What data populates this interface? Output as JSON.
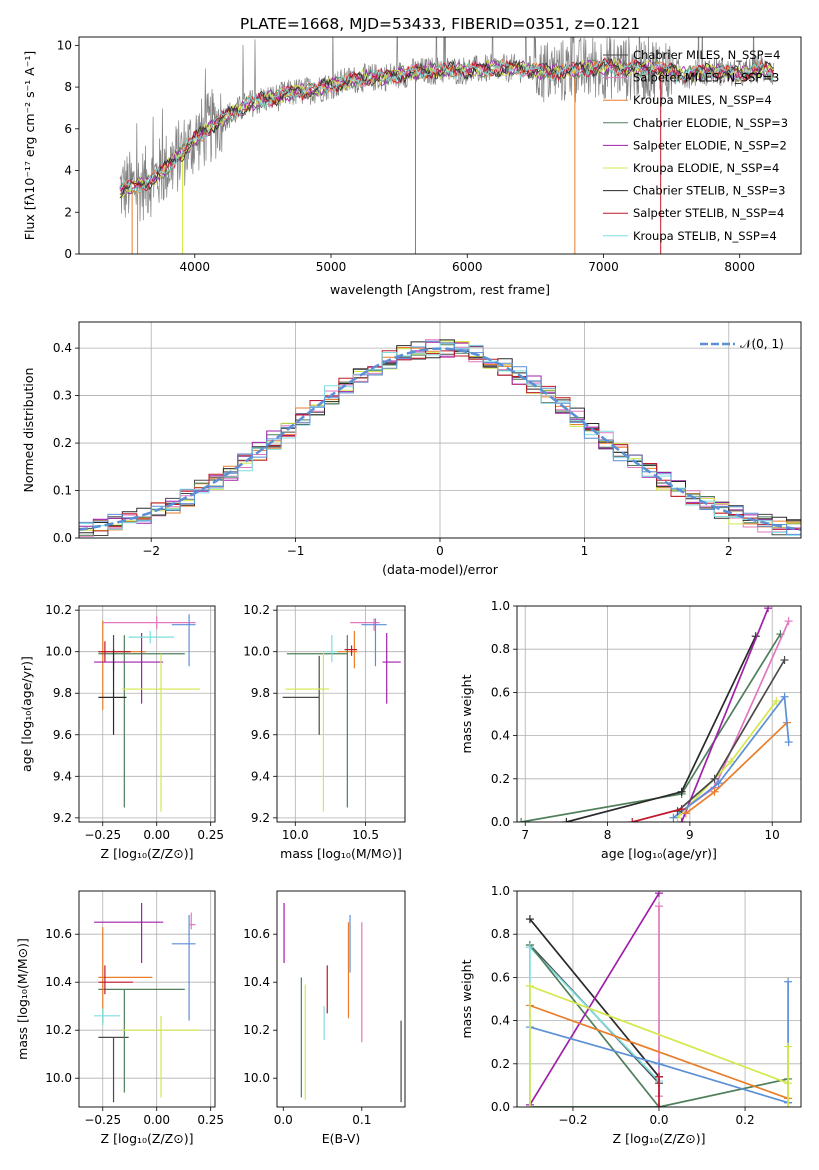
{
  "figure_title": "PLATE=1668, MJD=53433, FIBERID=0351, z=0.121",
  "colors": {
    "chabrier_miles": "#4a4a4a",
    "salpeter_miles": "#e377c2",
    "kroupa_miles": "#e87e2b",
    "chabrier_elodie": "#4f7f5a",
    "salpeter_elodie": "#a020a8",
    "kroupa_elodie": "#d4e84a",
    "chabrier_stelib": "#2a2a2a",
    "salpeter_stelib": "#c0182a",
    "kroupa_stelib": "#7fdde0",
    "data": "#808080",
    "gaussian": "#5b8fd6",
    "blue_model": "#5b8fd6"
  },
  "chart_data": [
    {
      "id": "spectrum",
      "type": "line",
      "title": "PLATE=1668, MJD=53433, FIBERID=0351, z=0.121",
      "xlabel": "wavelength [Angstrom, rest frame]",
      "ylabel": "Flux [fλ10⁻¹⁷ erg cm⁻² s⁻¹ A⁻¹]",
      "xlim": [
        3150,
        8450
      ],
      "ylim": [
        0,
        10.4
      ],
      "xticks": [
        4000,
        5000,
        6000,
        7000,
        8000
      ],
      "yticks": [
        0,
        2,
        4,
        6,
        8,
        10
      ],
      "grid": false,
      "legend_position": "top-right",
      "continuum": {
        "x": [
          3450,
          3600,
          3700,
          3800,
          3900,
          4000,
          4100,
          4200,
          4300,
          4400,
          4500,
          4600,
          4700,
          4800,
          4900,
          5000,
          5200,
          5400,
          5600,
          5800,
          6000,
          6200,
          6400,
          6600,
          6800,
          7000,
          7200,
          7400,
          7600,
          7800,
          8000,
          8150,
          8250
        ],
        "y": [
          3.1,
          3.3,
          3.6,
          4.2,
          4.8,
          5.5,
          6.0,
          6.5,
          6.8,
          7.2,
          7.4,
          7.5,
          7.7,
          7.8,
          7.9,
          8.1,
          8.4,
          8.5,
          8.7,
          8.8,
          8.8,
          8.9,
          8.9,
          8.7,
          8.8,
          9.0,
          8.9,
          8.9,
          8.6,
          8.8,
          8.6,
          8.9,
          8.7
        ]
      },
      "series": [
        {
          "name": "Chabrier MILES, N_SSP=4",
          "color_key": "chabrier_miles"
        },
        {
          "name": "Salpeter MILES, N_SSP=3",
          "color_key": "salpeter_miles"
        },
        {
          "name": "Kroupa MILES, N_SSP=4",
          "color_key": "kroupa_miles"
        },
        {
          "name": "Chabrier ELODIE, N_SSP=3",
          "color_key": "chabrier_elodie"
        },
        {
          "name": "Salpeter ELODIE, N_SSP=2",
          "color_key": "salpeter_elodie"
        },
        {
          "name": "Kroupa ELODIE, N_SSP=4",
          "color_key": "kroupa_elodie"
        },
        {
          "name": "Chabrier STELIB, N_SSP=3",
          "color_key": "chabrier_stelib"
        },
        {
          "name": "Salpeter STELIB, N_SSP=4",
          "color_key": "salpeter_stelib"
        },
        {
          "name": "Kroupa STELIB, N_SSP=4",
          "color_key": "kroupa_stelib"
        }
      ]
    },
    {
      "id": "residuals",
      "type": "line",
      "xlabel": "(data-model)/error",
      "ylabel": "Normed distribution",
      "xlim": [
        -2.5,
        2.5
      ],
      "ylim": [
        0,
        0.455
      ],
      "xticks": [
        -2,
        -1,
        0,
        1,
        2
      ],
      "yticks": [
        0.0,
        0.1,
        0.2,
        0.3,
        0.4
      ],
      "grid": true,
      "legend_position": "top-right",
      "gaussian_label": "𝒩(0, 1)",
      "bins": {
        "start": -2.5,
        "width": 0.1,
        "count": 50
      }
    },
    {
      "id": "age_vs_Z",
      "type": "scatter",
      "xlabel": "Z [log₁₀(Z/Z⊙)]",
      "ylabel": "age  [log₁₀(age/yr)]",
      "xlim": [
        -0.36,
        0.27
      ],
      "ylim": [
        9.18,
        10.22
      ],
      "xticks": [
        -0.25,
        0.0,
        0.25
      ],
      "xtick_labels": [
        "−0.25",
        "0.00",
        "0.25"
      ],
      "yticks": [
        9.2,
        9.4,
        9.6,
        9.8,
        10.0,
        10.2
      ],
      "grid": true,
      "points": [
        {
          "x": -0.2,
          "xerr_lo": 0.07,
          "xerr_hi": 0.07,
          "y": 10.0,
          "yerr_lo": 0.09,
          "yerr_hi": 0.08,
          "color_key": "chabrier_miles"
        },
        {
          "x": -0.25,
          "xerr_lo": 0.02,
          "xerr_hi": 0.2,
          "y": 10.0,
          "yerr_lo": 0.28,
          "yerr_hi": 0.15,
          "color_key": "kroupa_miles"
        },
        {
          "x": -0.15,
          "xerr_lo": 0.12,
          "xerr_hi": 0.28,
          "y": 9.99,
          "yerr_lo": 0.74,
          "yerr_hi": 0.09,
          "color_key": "chabrier_elodie"
        },
        {
          "x": -0.07,
          "xerr_lo": 0.22,
          "xerr_hi": 0.1,
          "y": 9.95,
          "yerr_lo": 0.2,
          "yerr_hi": 0.14,
          "color_key": "salpeter_elodie"
        },
        {
          "x": 0.02,
          "xerr_lo": 0.18,
          "xerr_hi": 0.18,
          "y": 9.82,
          "yerr_lo": 0.59,
          "yerr_hi": 0.17,
          "color_key": "kroupa_elodie"
        },
        {
          "x": -0.2,
          "xerr_lo": 0.07,
          "xerr_hi": 0.06,
          "y": 9.78,
          "yerr_lo": 0.18,
          "yerr_hi": 0.23,
          "color_key": "chabrier_stelib"
        },
        {
          "x": -0.24,
          "xerr_lo": 0.03,
          "xerr_hi": 0.12,
          "y": 10.0,
          "yerr_lo": 0.05,
          "yerr_hi": 0.05,
          "color_key": "salpeter_stelib"
        },
        {
          "x": -0.03,
          "xerr_lo": 0.1,
          "xerr_hi": 0.11,
          "y": 10.07,
          "yerr_lo": 0.03,
          "yerr_hi": 0.03,
          "color_key": "kroupa_stelib"
        },
        {
          "x": 0.0,
          "xerr_lo": 0.25,
          "xerr_hi": 0.18,
          "y": 10.14,
          "yerr_lo": 0.03,
          "yerr_hi": 0.03,
          "color_key": "salpeter_miles"
        },
        {
          "x": 0.15,
          "xerr_lo": 0.08,
          "xerr_hi": 0.03,
          "y": 10.13,
          "yerr_lo": 0.2,
          "yerr_hi": 0.05,
          "color_key": "blue_model"
        }
      ]
    },
    {
      "id": "age_vs_mass",
      "type": "scatter",
      "xlabel": "mass [log₁₀(M/M⊙)]",
      "xlim": [
        9.87,
        10.78
      ],
      "ylim": [
        9.18,
        10.22
      ],
      "xticks": [
        10.0,
        10.5
      ],
      "xtick_labels": [
        "10.0",
        "10.5"
      ],
      "yticks": [
        9.2,
        9.4,
        9.6,
        9.8,
        10.0,
        10.2
      ],
      "grid": true,
      "points": [
        {
          "x": 10.17,
          "xerr_lo": 0.26,
          "xerr_hi": 0.0,
          "y": 9.78,
          "yerr_lo": 0.18,
          "yerr_hi": 0.2,
          "color_key": "chabrier_miles"
        },
        {
          "x": 10.42,
          "xerr_lo": 0.12,
          "xerr_hi": 0.02,
          "y": 10.0,
          "yerr_lo": 0.08,
          "yerr_hi": 0.1,
          "color_key": "kroupa_miles"
        },
        {
          "x": 10.37,
          "xerr_lo": 0.43,
          "xerr_hi": 0.0,
          "y": 9.99,
          "yerr_lo": 0.74,
          "yerr_hi": 0.09,
          "color_key": "chabrier_elodie"
        },
        {
          "x": 10.65,
          "xerr_lo": 0.03,
          "xerr_hi": 0.1,
          "y": 9.95,
          "yerr_lo": 0.2,
          "yerr_hi": 0.14,
          "color_key": "salpeter_elodie"
        },
        {
          "x": 10.2,
          "xerr_lo": 0.27,
          "xerr_hi": 0.04,
          "y": 9.82,
          "yerr_lo": 0.59,
          "yerr_hi": 0.18,
          "color_key": "kroupa_elodie"
        },
        {
          "x": 10.4,
          "xerr_lo": 0.05,
          "xerr_hi": 0.04,
          "y": 10.01,
          "yerr_lo": 0.03,
          "yerr_hi": 0.02,
          "color_key": "salpeter_stelib"
        },
        {
          "x": 10.26,
          "xerr_lo": 0.04,
          "xerr_hi": 0.04,
          "y": 10.0,
          "yerr_lo": 0.05,
          "yerr_hi": 0.08,
          "color_key": "kroupa_stelib"
        },
        {
          "x": 10.56,
          "xerr_lo": 0.17,
          "xerr_hi": 0.04,
          "y": 10.14,
          "yerr_lo": 0.04,
          "yerr_hi": 0.02,
          "color_key": "salpeter_miles"
        },
        {
          "x": 10.57,
          "xerr_lo": 0.1,
          "xerr_hi": 0.08,
          "y": 10.13,
          "yerr_lo": 0.2,
          "yerr_hi": 0.03,
          "color_key": "blue_model"
        }
      ]
    },
    {
      "id": "weight_vs_age",
      "type": "line",
      "xlabel": "age  [log₁₀(age/yr)]",
      "ylabel": "mass weight",
      "xlim": [
        6.9,
        10.35
      ],
      "ylim": [
        0,
        1.0
      ],
      "xticks": [
        7,
        8,
        9,
        10
      ],
      "yticks": [
        0.0,
        0.2,
        0.4,
        0.6,
        0.8,
        1.0
      ],
      "grid": true,
      "series": [
        {
          "color_key": "chabrier_elodie",
          "x": [
            6.95,
            8.9,
            10.1
          ],
          "y": [
            0.0,
            0.13,
            0.87
          ]
        },
        {
          "color_key": "chabrier_stelib",
          "x": [
            7.5,
            8.9,
            9.8
          ],
          "y": [
            0.0,
            0.14,
            0.86
          ]
        },
        {
          "color_key": "salpeter_elodie",
          "x": [
            8.9,
            9.95
          ],
          "y": [
            0.0,
            0.99
          ]
        },
        {
          "color_key": "salpeter_miles",
          "x": [
            8.9,
            9.3,
            10.2
          ],
          "y": [
            0.05,
            0.16,
            0.93
          ]
        },
        {
          "color_key": "kroupa_miles",
          "x": [
            8.95,
            9.3,
            10.18
          ],
          "y": [
            0.04,
            0.14,
            0.46
          ]
        },
        {
          "color_key": "kroupa_elodie",
          "x": [
            8.85,
            9.5,
            10.05
          ],
          "y": [
            0.02,
            0.28,
            0.56
          ]
        },
        {
          "color_key": "blue_model",
          "x": [
            8.8,
            9.35,
            10.15,
            10.2
          ],
          "y": [
            0.02,
            0.18,
            0.58,
            0.37
          ]
        },
        {
          "color_key": "chabrier_miles",
          "x": [
            8.85,
            9.3,
            10.15
          ],
          "y": [
            0.05,
            0.2,
            0.75
          ]
        },
        {
          "color_key": "salpeter_stelib",
          "x": [
            8.3,
            8.9
          ],
          "y": [
            0.0,
            0.06
          ]
        }
      ]
    },
    {
      "id": "mass_vs_Z",
      "type": "scatter",
      "xlabel": "Z [log₁₀(Z/Z⊙)]",
      "ylabel": "mass [log₁₀(M/M⊙)]",
      "xlim": [
        -0.36,
        0.27
      ],
      "ylim": [
        9.88,
        10.78
      ],
      "xticks": [
        -0.25,
        0.0,
        0.25
      ],
      "xtick_labels": [
        "−0.25",
        "0.00",
        "0.25"
      ],
      "yticks": [
        10.0,
        10.2,
        10.4,
        10.6
      ],
      "grid": true,
      "points": [
        {
          "x": -0.2,
          "xerr_lo": 0.07,
          "xerr_hi": 0.07,
          "y": 10.17,
          "yerr_lo": 0.27,
          "yerr_hi": 0.0,
          "color_key": "chabrier_miles"
        },
        {
          "x": -0.15,
          "xerr_lo": 0.12,
          "xerr_hi": 0.28,
          "y": 10.37,
          "yerr_lo": 0.43,
          "yerr_hi": 0.0,
          "color_key": "chabrier_elodie"
        },
        {
          "x": -0.07,
          "xerr_lo": 0.22,
          "xerr_hi": 0.1,
          "y": 10.65,
          "yerr_lo": 0.17,
          "yerr_hi": 0.08,
          "color_key": "salpeter_elodie"
        },
        {
          "x": 0.02,
          "xerr_lo": 0.18,
          "xerr_hi": 0.18,
          "y": 10.2,
          "yerr_lo": 0.28,
          "yerr_hi": 0.06,
          "color_key": "kroupa_elodie"
        },
        {
          "x": -0.25,
          "xerr_lo": 0.02,
          "xerr_hi": 0.23,
          "y": 10.42,
          "yerr_lo": 0.19,
          "yerr_hi": 0.21,
          "color_key": "kroupa_miles"
        },
        {
          "x": -0.24,
          "xerr_lo": 0.03,
          "xerr_hi": 0.13,
          "y": 10.4,
          "yerr_lo": 0.05,
          "yerr_hi": 0.07,
          "color_key": "salpeter_stelib"
        },
        {
          "x": -0.25,
          "xerr_lo": 0.04,
          "xerr_hi": 0.08,
          "y": 10.26,
          "yerr_lo": 0.04,
          "yerr_hi": 0.03,
          "color_key": "kroupa_stelib"
        },
        {
          "x": 0.15,
          "xerr_lo": 0.08,
          "xerr_hi": 0.03,
          "y": 10.56,
          "yerr_lo": 0.32,
          "yerr_hi": 0.12,
          "color_key": "blue_model"
        },
        {
          "x": 0.16,
          "xerr_lo": 0.01,
          "xerr_hi": 0.02,
          "y": 10.64,
          "yerr_lo": 0.02,
          "yerr_hi": 0.05,
          "color_key": "salpeter_miles"
        }
      ]
    },
    {
      "id": "mass_vs_ebv",
      "type": "scatter",
      "xlabel": "E(B-V)",
      "xlim": [
        -0.008,
        0.155
      ],
      "ylim": [
        9.88,
        10.78
      ],
      "xticks": [
        0.0,
        0.1
      ],
      "xtick_labels": [
        "0.0",
        "0.1"
      ],
      "yticks": [
        10.0,
        10.2,
        10.4,
        10.6
      ],
      "grid": false,
      "points": [
        {
          "x": 0.001,
          "y": 10.65,
          "yerr_lo": 0.17,
          "yerr_hi": 0.08,
          "color_key": "salpeter_elodie"
        },
        {
          "x": 0.023,
          "y": 10.17,
          "yerr_lo": 0.25,
          "yerr_hi": 0.25,
          "color_key": "chabrier_elodie"
        },
        {
          "x": 0.028,
          "y": 10.15,
          "yerr_lo": 0.24,
          "yerr_hi": 0.24,
          "color_key": "kroupa_elodie"
        },
        {
          "x": 0.052,
          "y": 10.23,
          "yerr_lo": 0.07,
          "yerr_hi": 0.07,
          "color_key": "kroupa_stelib"
        },
        {
          "x": 0.056,
          "y": 10.38,
          "yerr_lo": 0.11,
          "yerr_hi": 0.09,
          "color_key": "salpeter_stelib"
        },
        {
          "x": 0.083,
          "y": 10.45,
          "yerr_lo": 0.2,
          "yerr_hi": 0.2,
          "color_key": "kroupa_miles"
        },
        {
          "x": 0.085,
          "y": 10.56,
          "yerr_lo": 0.12,
          "yerr_hi": 0.12,
          "color_key": "blue_model"
        },
        {
          "x": 0.1,
          "y": 10.4,
          "yerr_lo": 0.25,
          "yerr_hi": 0.25,
          "color_key": "salpeter_miles"
        },
        {
          "x": 0.15,
          "y": 10.07,
          "yerr_lo": 0.17,
          "yerr_hi": 0.17,
          "color_key": "chabrier_miles"
        }
      ]
    },
    {
      "id": "weight_vs_Z",
      "type": "line",
      "xlabel": "Z [log₁₀(Z/Z⊙)]",
      "ylabel": "mass weight",
      "xlim": [
        -0.33,
        0.33
      ],
      "ylim": [
        0,
        1.0
      ],
      "xticks": [
        -0.2,
        0.0,
        0.2
      ],
      "xtick_labels": [
        "−0.2",
        "0.0",
        "0.2"
      ],
      "yticks": [
        0.0,
        0.2,
        0.4,
        0.6,
        0.8,
        1.0
      ],
      "grid": true,
      "series": [
        {
          "color_key": "chabrier_stelib",
          "x": [
            -0.3,
            0.0
          ],
          "y": [
            0.87,
            0.14
          ]
        },
        {
          "color_key": "chabrier_miles",
          "x": [
            -0.3,
            0.0
          ],
          "y": [
            0.75,
            0.11
          ]
        },
        {
          "color_key": "kroupa_stelib",
          "x": [
            -0.3,
            0.0
          ],
          "y": [
            0.74,
            0.12
          ]
        },
        {
          "color_key": "chabrier_elodie",
          "x": [
            -0.3,
            0.0,
            0.3
          ],
          "y": [
            0.0,
            0.0,
            0.13
          ]
        },
        {
          "color_key": "chabrier_elodie",
          "x": [
            -0.3,
            0.0
          ],
          "y": [
            0.75,
            0.0
          ]
        },
        {
          "color_key": "salpeter_elodie",
          "x": [
            -0.3,
            0.0
          ],
          "y": [
            0.01,
            0.99
          ]
        },
        {
          "color_key": "salpeter_miles",
          "x": [
            0.0,
            0.0
          ],
          "y": [
            0.05,
            0.93
          ]
        },
        {
          "color_key": "kroupa_elodie",
          "x": [
            -0.3,
            0.3
          ],
          "y": [
            0.56,
            0.11
          ]
        },
        {
          "color_key": "kroupa_miles",
          "x": [
            -0.3,
            0.3
          ],
          "y": [
            0.47,
            0.04
          ]
        },
        {
          "color_key": "blue_model",
          "x": [
            -0.3,
            0.0,
            0.3
          ],
          "y": [
            0.37,
            0.2,
            0.02
          ]
        },
        {
          "color_key": "blue_model",
          "x": [
            0.3,
            0.3
          ],
          "y": [
            0.02,
            0.58
          ]
        },
        {
          "color_key": "kroupa_elodie",
          "x": [
            0.3,
            0.3
          ],
          "y": [
            0.0,
            0.28
          ]
        },
        {
          "color_key": "kroupa_stelib",
          "x": [
            -0.3,
            -0.3
          ],
          "y": [
            0.0,
            0.74
          ]
        },
        {
          "color_key": "kroupa_elodie",
          "x": [
            -0.3,
            -0.3
          ],
          "y": [
            0.0,
            0.56
          ]
        },
        {
          "color_key": "salpeter_stelib",
          "x": [
            0.0,
            0.0
          ],
          "y": [
            0.0,
            0.14
          ]
        }
      ]
    }
  ]
}
